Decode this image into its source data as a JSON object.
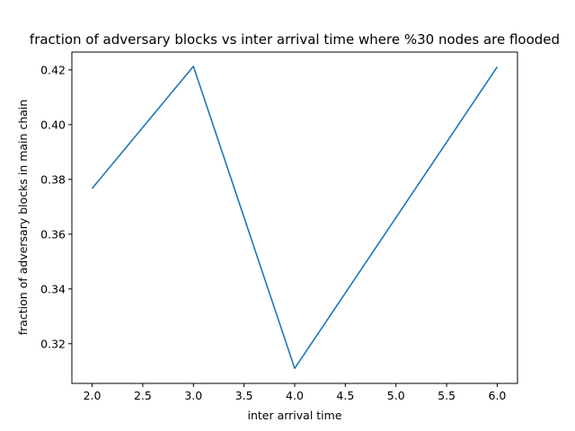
{
  "chart_data": {
    "type": "line",
    "title": "fraction of adversary blocks vs inter arrival time where %30 nodes are flooded",
    "xlabel": "inter arrival time",
    "ylabel": "fraction of adversary blocks in main chain",
    "xlim": [
      1.8,
      6.2
    ],
    "ylim": [
      0.3055,
      0.4265
    ],
    "xticks": [
      2.0,
      2.5,
      3.0,
      3.5,
      4.0,
      4.5,
      5.0,
      5.5,
      6.0
    ],
    "xtick_labels": [
      "2.0",
      "2.5",
      "3.0",
      "3.5",
      "4.0",
      "4.5",
      "5.0",
      "5.5",
      "6.0"
    ],
    "yticks": [
      0.32,
      0.34,
      0.36,
      0.38,
      0.4,
      0.42
    ],
    "ytick_labels": [
      "0.32",
      "0.34",
      "0.36",
      "0.38",
      "0.40",
      "0.42"
    ],
    "grid": false,
    "series": [
      {
        "color": "#1f77b4",
        "x": [
          2,
          3,
          4,
          6
        ],
        "y": [
          0.3767,
          0.4213,
          0.311,
          0.4211
        ]
      }
    ]
  }
}
